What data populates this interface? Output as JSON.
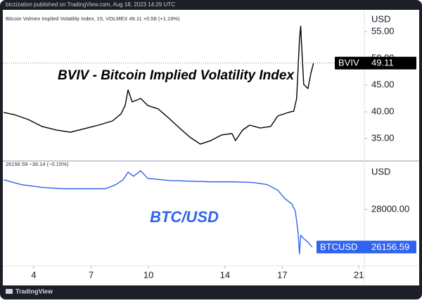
{
  "header": "btczization published on TradingView.com, Aug 18, 2023 14:29 UTC",
  "footer": "TradingView",
  "chart_data": [
    {
      "type": "line",
      "legend": "Bitcoin Volmex Implied Volatility Index, 15, VOLMEX  49.11  +0.58 (+1.19%)",
      "annotation": "BVIV - Bitcoin Implied Volatility Index",
      "currency": "USD",
      "x": [
        2.42,
        2.97,
        3.71,
        4.44,
        5.18,
        5.91,
        6.65,
        7.38,
        8.12,
        8.56,
        8.78,
        8.93,
        9.15,
        9.59,
        9.96,
        10.51,
        11.06,
        11.62,
        12.16,
        12.71,
        13.26,
        13.82,
        14.37,
        14.55,
        14.92,
        15.29,
        15.84,
        16.39,
        16.76,
        17.31,
        17.6,
        17.75,
        17.9,
        17.96,
        18.04,
        18.12,
        18.34,
        18.49,
        18.63
      ],
      "series": [
        {
          "name": "BVIV",
          "color": "#000000",
          "values": [
            39.87,
            39.47,
            38.55,
            37.24,
            36.58,
            36.18,
            36.84,
            37.5,
            38.29,
            39.6,
            41.18,
            44.08,
            41.84,
            42.5,
            41.18,
            40.53,
            38.82,
            36.97,
            35.26,
            33.95,
            34.6,
            35.66,
            35.92,
            34.61,
            36.58,
            37.5,
            36.97,
            37.24,
            39.21,
            39.87,
            40.13,
            42.5,
            53.68,
            56.05,
            50.39,
            45.13,
            44.34,
            47.11,
            49.11
          ]
        }
      ],
      "xlim": [
        2.38,
        21.29
      ],
      "ylim": [
        30.92,
        59.08
      ],
      "yticks": [
        {
          "value": 35,
          "label": "35.00"
        },
        {
          "value": 40,
          "label": "40.00"
        },
        {
          "value": 45,
          "label": "45.00"
        },
        {
          "value": 50,
          "label": "50.00"
        },
        {
          "value": 55,
          "label": "55.00"
        }
      ]
    },
    {
      "type": "line",
      "legend": "26156.59  −39.14 (−0.15%)",
      "annotation": "BTC/USD",
      "currency": "USD",
      "x": [
        2.42,
        3.34,
        4.44,
        5.54,
        6.65,
        7.75,
        8.3,
        8.67,
        8.93,
        9.22,
        9.59,
        9.96,
        11.06,
        12.16,
        13.26,
        14.37,
        15.47,
        16.21,
        16.76,
        17.13,
        17.5,
        17.68,
        17.82,
        17.9,
        17.96,
        18.12,
        18.34,
        18.56
      ],
      "series": [
        {
          "name": "BTCUSD",
          "color": "#2f63f0",
          "values": [
            29466,
            29228,
            29091,
            29023,
            29023,
            29023,
            29228,
            29466,
            29841,
            29637,
            29910,
            29535,
            29432,
            29398,
            29364,
            29364,
            29330,
            29228,
            28955,
            28546,
            28273,
            27932,
            26909,
            25818,
            26739,
            26568,
            26397,
            26156.59
          ]
        }
      ],
      "xlim": [
        2.38,
        21.29
      ],
      "xticks": [
        4,
        7,
        10,
        14,
        17,
        21
      ],
      "ylim": [
        25272,
        30319
      ],
      "yticks": [
        {
          "value": 28000,
          "label": "28000.00"
        }
      ]
    }
  ]
}
